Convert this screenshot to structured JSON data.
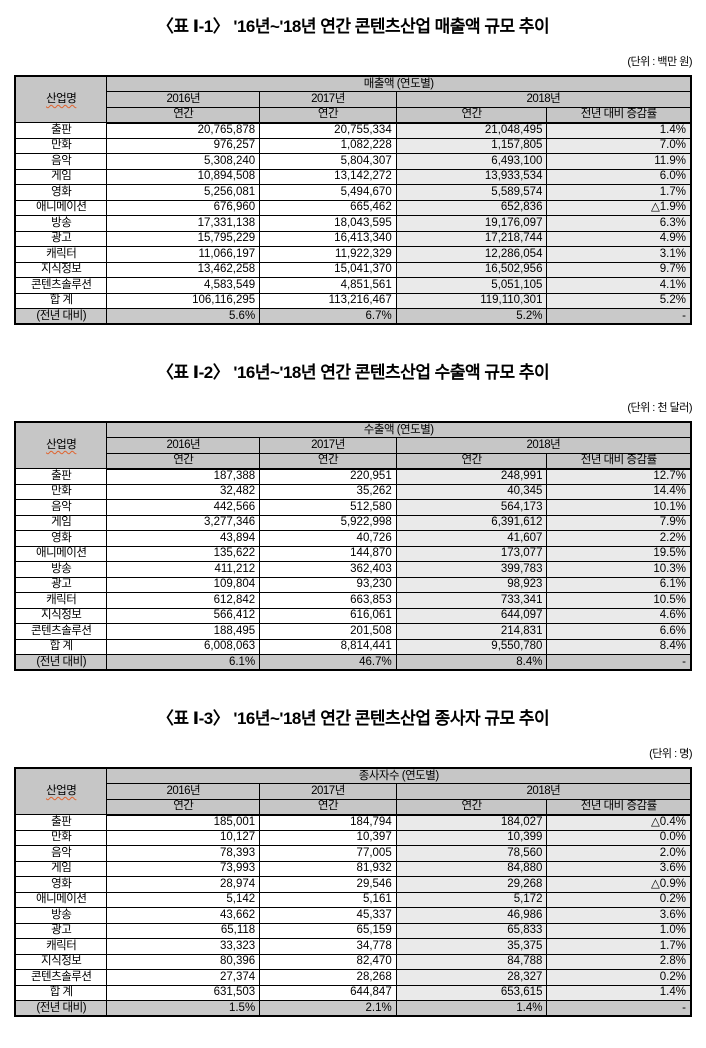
{
  "colors": {
    "header_bg": "#c6c6c6",
    "footer_row_bg": "#c9c9c9",
    "year2018_bg": "#eaeaea",
    "border": "#000000",
    "spellcheck_underline": "#e0622d"
  },
  "shared": {
    "industry_header": "산업명",
    "years": [
      "2016년",
      "2017년",
      "2018년"
    ],
    "sub_headers": [
      "연간",
      "연간",
      "연간",
      "전년 대비 증감률"
    ]
  },
  "tables": [
    {
      "title": "〈표 Ⅰ-1〉 '16년~'18년 연간 콘텐츠산업 매출액 규모 추이",
      "unit": "(단위 : 백만 원)",
      "group_header": "매출액 (연도별)",
      "rows": [
        {
          "label": "출판",
          "values": [
            "20,765,878",
            "20,755,334",
            "21,048,495",
            "1.4%"
          ]
        },
        {
          "label": "만화",
          "values": [
            "976,257",
            "1,082,228",
            "1,157,805",
            "7.0%"
          ]
        },
        {
          "label": "음악",
          "values": [
            "5,308,240",
            "5,804,307",
            "6,493,100",
            "11.9%"
          ]
        },
        {
          "label": "게임",
          "values": [
            "10,894,508",
            "13,142,272",
            "13,933,534",
            "6.0%"
          ]
        },
        {
          "label": "영화",
          "values": [
            "5,256,081",
            "5,494,670",
            "5,589,574",
            "1.7%"
          ]
        },
        {
          "label": "애니메이션",
          "values": [
            "676,960",
            "665,462",
            "652,836",
            "△1.9%"
          ]
        },
        {
          "label": "방송",
          "values": [
            "17,331,138",
            "18,043,595",
            "19,176,097",
            "6.3%"
          ]
        },
        {
          "label": "광고",
          "values": [
            "15,795,229",
            "16,413,340",
            "17,218,744",
            "4.9%"
          ]
        },
        {
          "label": "캐릭터",
          "values": [
            "11,066,197",
            "11,922,329",
            "12,286,054",
            "3.1%"
          ]
        },
        {
          "label": "지식정보",
          "values": [
            "13,462,258",
            "15,041,370",
            "16,502,956",
            "9.7%"
          ]
        },
        {
          "label": "콘텐츠솔루션",
          "values": [
            "4,583,549",
            "4,851,561",
            "5,051,105",
            "4.1%"
          ]
        },
        {
          "label": "합  계",
          "values": [
            "106,116,295",
            "113,216,467",
            "119,110,301",
            "5.2%"
          ]
        }
      ],
      "footer": {
        "label": "(전년 대비)",
        "values": [
          "5.6%",
          "6.7%",
          "5.2%",
          "-"
        ]
      }
    },
    {
      "title": "〈표 Ⅰ-2〉 '16년~'18년 연간 콘텐츠산업 수출액 규모 추이",
      "unit": "(단위 : 천 달러)",
      "group_header": "수출액 (연도별)",
      "rows": [
        {
          "label": "출판",
          "values": [
            "187,388",
            "220,951",
            "248,991",
            "12.7%"
          ]
        },
        {
          "label": "만화",
          "values": [
            "32,482",
            "35,262",
            "40,345",
            "14.4%"
          ]
        },
        {
          "label": "음악",
          "values": [
            "442,566",
            "512,580",
            "564,173",
            "10.1%"
          ]
        },
        {
          "label": "게임",
          "values": [
            "3,277,346",
            "5,922,998",
            "6,391,612",
            "7.9%"
          ]
        },
        {
          "label": "영화",
          "values": [
            "43,894",
            "40,726",
            "41,607",
            "2.2%"
          ]
        },
        {
          "label": "애니메이션",
          "values": [
            "135,622",
            "144,870",
            "173,077",
            "19.5%"
          ]
        },
        {
          "label": "방송",
          "values": [
            "411,212",
            "362,403",
            "399,783",
            "10.3%"
          ]
        },
        {
          "label": "광고",
          "values": [
            "109,804",
            "93,230",
            "98,923",
            "6.1%"
          ]
        },
        {
          "label": "캐릭터",
          "values": [
            "612,842",
            "663,853",
            "733,341",
            "10.5%"
          ]
        },
        {
          "label": "지식정보",
          "values": [
            "566,412",
            "616,061",
            "644,097",
            "4.6%"
          ]
        },
        {
          "label": "콘텐츠솔루션",
          "values": [
            "188,495",
            "201,508",
            "214,831",
            "6.6%"
          ]
        },
        {
          "label": "합  계",
          "values": [
            "6,008,063",
            "8,814,441",
            "9,550,780",
            "8.4%"
          ]
        }
      ],
      "footer": {
        "label": "(전년 대비)",
        "values": [
          "6.1%",
          "46.7%",
          "8.4%",
          "-"
        ]
      }
    },
    {
      "title": "〈표 Ⅰ-3〉 '16년~'18년 연간 콘텐츠산업 종사자 규모 추이",
      "unit": "(단위 : 명)",
      "group_header": "종사자수 (연도별)",
      "rows": [
        {
          "label": "출판",
          "values": [
            "185,001",
            "184,794",
            "184,027",
            "△0.4%"
          ]
        },
        {
          "label": "만화",
          "values": [
            "10,127",
            "10,397",
            "10,399",
            "0.0%"
          ]
        },
        {
          "label": "음악",
          "values": [
            "78,393",
            "77,005",
            "78,560",
            "2.0%"
          ]
        },
        {
          "label": "게임",
          "values": [
            "73,993",
            "81,932",
            "84,880",
            "3.6%"
          ]
        },
        {
          "label": "영화",
          "values": [
            "28,974",
            "29,546",
            "29,268",
            "△0.9%"
          ]
        },
        {
          "label": "애니메이션",
          "values": [
            "5,142",
            "5,161",
            "5,172",
            "0.2%"
          ]
        },
        {
          "label": "방송",
          "values": [
            "43,662",
            "45,337",
            "46,986",
            "3.6%"
          ]
        },
        {
          "label": "광고",
          "values": [
            "65,118",
            "65,159",
            "65,833",
            "1.0%"
          ]
        },
        {
          "label": "캐릭터",
          "values": [
            "33,323",
            "34,778",
            "35,375",
            "1.7%"
          ]
        },
        {
          "label": "지식정보",
          "values": [
            "80,396",
            "82,470",
            "84,788",
            "2.8%"
          ]
        },
        {
          "label": "콘텐츠솔루션",
          "values": [
            "27,374",
            "28,268",
            "28,327",
            "0.2%"
          ]
        },
        {
          "label": "합  계",
          "values": [
            "631,503",
            "644,847",
            "653,615",
            "1.4%"
          ]
        }
      ],
      "footer": {
        "label": "(전년 대비)",
        "values": [
          "1.5%",
          "2.1%",
          "1.4%",
          "-"
        ]
      }
    }
  ]
}
